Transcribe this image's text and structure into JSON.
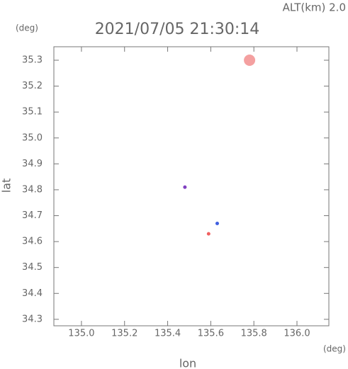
{
  "chart_data": {
    "type": "scatter",
    "title": "2021/07/05 21:30:14",
    "annotation": "ALT(km) 2.0",
    "x_label": "lon",
    "x_unit": "(deg)",
    "y_label": "lat",
    "y_unit": "(deg)",
    "x": [
      135.78,
      135.48,
      135.63,
      135.59
    ],
    "values": [
      35.3,
      34.81,
      34.67,
      34.63
    ],
    "colors": [
      "#f4a0a0",
      "#8040c0",
      "#4060e0",
      "#f06060"
    ],
    "xlim": [
      134.872,
      136.148
    ],
    "ylim": [
      34.275,
      35.352
    ],
    "xticks": [
      {
        "value": 135,
        "label": "135.0"
      },
      135.2,
      135.4,
      135.6,
      135.8,
      {
        "value": 136,
        "label": "136.0"
      }
    ],
    "yticks": [
      34.3,
      34.4,
      34.5,
      34.6,
      34.7,
      34.8,
      34.9,
      {
        "value": 35,
        "label": "35.0"
      },
      35.1,
      35.2,
      35.3
    ],
    "grid": false
  }
}
